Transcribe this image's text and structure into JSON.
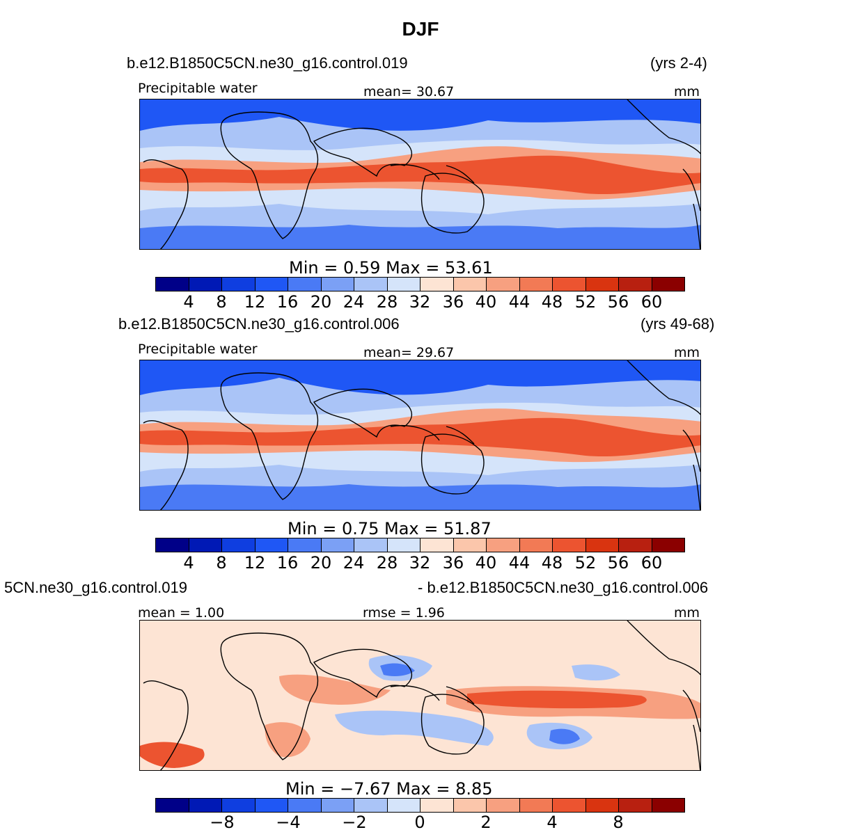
{
  "title": "DJF",
  "panels": [
    {
      "case_name": "b.e12.B1850C5CN.ne30_g16.control.019",
      "years": "(yrs 2-4)",
      "left_label": "Precipitable  water",
      "center_label": "mean=   30.67",
      "units": "mm",
      "minmax_label": "Min  =     0.59  Max  =     53.61",
      "tick_labels": [
        "4",
        "8",
        "12",
        "16",
        "20",
        "24",
        "28",
        "32",
        "36",
        "40",
        "44",
        "48",
        "52",
        "56",
        "60"
      ]
    },
    {
      "case_name": "b.e12.B1850C5CN.ne30_g16.control.006",
      "years": "(yrs 49-68)",
      "left_label": "Precipitable  water",
      "center_label": "mean=   29.67",
      "units": "mm",
      "minmax_label": "Min  =     0.75  Max  =     51.87",
      "tick_labels": [
        "4",
        "8",
        "12",
        "16",
        "20",
        "24",
        "28",
        "32",
        "36",
        "40",
        "44",
        "48",
        "52",
        "56",
        "60"
      ]
    },
    {
      "case_name": "5CN.ne30_g16.control.019",
      "years": "- b.e12.B1850C5CN.ne30_g16.control.006",
      "left_label": "mean  =     1.00",
      "center_label": "rmse  =     1.96",
      "units": "mm",
      "minmax_label": "Min  =    −7.67  Max  =      8.85",
      "tick_labels": [
        "−8",
        "−4",
        "−2",
        "0",
        "2",
        "4",
        "8"
      ]
    }
  ],
  "colorbar_colors": [
    "#000088",
    "#0019b5",
    "#0f3ee0",
    "#1f57f5",
    "#4a7af5",
    "#7ba0f5",
    "#aac4f7",
    "#d5e4fa",
    "#fde4d4",
    "#fbc6ab",
    "#f7a080",
    "#f27a55",
    "#ec5430",
    "#d93410",
    "#b82010",
    "#8b0000"
  ],
  "map_colors": {
    "background": "#aac4f7",
    "very_dry": "#1f57f5",
    "dry": "#4a7af5",
    "mid": "#d5e4fa",
    "moist": "#f7a080",
    "wet": "#ec5430",
    "diff_background": "#fde4d4",
    "diff_pos": "#f7a080",
    "diff_strong": "#ec5430",
    "diff_neg": "#aac4f7",
    "diff_negstrong": "#4a7af5",
    "coast": "#000000"
  }
}
